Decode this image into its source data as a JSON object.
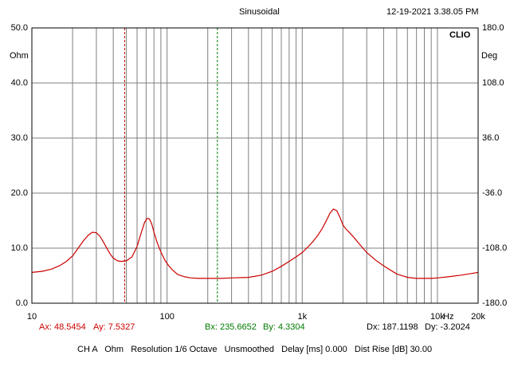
{
  "header": {
    "title": "Sinusoidal",
    "timestamp": "12-19-2021 3.38.05 PM",
    "brand": "CLIO"
  },
  "footer": {
    "ax": "Ax: 48.5454",
    "ay": "Ay: 7.5327",
    "bx": "Bx: 235.6652",
    "by": "By: 4.3304",
    "dx": "Dx: 187.1198",
    "dy": "Dy: -3.2024",
    "settings": "CH A   Ohm   Resolution 1/6 Octave   Unsmoothed   Delay [ms] 0.000   Dist Rise [dB] 30.00"
  },
  "colors": {
    "curve": "#cc0000",
    "cursor_a": "#cc0000",
    "cursor_b": "#008000",
    "grid": "#808080",
    "frame": "#000000"
  },
  "chart_data": {
    "type": "line",
    "xscale": "log",
    "xlim": [
      10,
      20000
    ],
    "ylim": [
      0,
      50
    ],
    "y2lim": [
      -180,
      180
    ],
    "ylabel": "Ohm",
    "y2label": "Deg",
    "xunit": "Hz",
    "x_tick_labels": [
      "10",
      "100",
      "1k",
      "10k",
      "20k"
    ],
    "y_tick_labels": [
      "0.0",
      "10.0",
      "20.0",
      "30.0",
      "40.0",
      "50.0"
    ],
    "y2_tick_labels": [
      "-180.0",
      "-108.0",
      "-36.0",
      "36.0",
      "108.0",
      "180.0"
    ],
    "grid": true,
    "cursors": [
      {
        "name": "A",
        "x": 48.5454,
        "y": 7.5327
      },
      {
        "name": "B",
        "x": 235.6652,
        "y": 4.3304
      }
    ],
    "series": [
      {
        "x": [
          10,
          12,
          14,
          16,
          18,
          20,
          22,
          24,
          26,
          28,
          30,
          32,
          34,
          36,
          38,
          40,
          43,
          46,
          50,
          55,
          60,
          64,
          68,
          71,
          74,
          77,
          80,
          84,
          88,
          92,
          97,
          103,
          110,
          120,
          135,
          150,
          170,
          200,
          250,
          300,
          400,
          500,
          600,
          700,
          800,
          900,
          1000,
          1100,
          1200,
          1300,
          1400,
          1500,
          1600,
          1700,
          1800,
          1900,
          2000,
          2100,
          2200,
          2400,
          2700,
          3000,
          3500,
          4000,
          5000,
          6000,
          7000,
          8000,
          9000,
          10000,
          12000,
          15000,
          18000,
          20000
        ],
        "values": [
          5.6,
          5.8,
          6.2,
          6.8,
          7.6,
          8.6,
          10.0,
          11.3,
          12.3,
          12.9,
          12.8,
          12.1,
          11.0,
          9.9,
          8.9,
          8.2,
          7.7,
          7.6,
          7.7,
          8.4,
          10.3,
          12.6,
          14.6,
          15.4,
          15.3,
          14.4,
          12.9,
          11.2,
          9.9,
          8.8,
          7.7,
          6.8,
          6.0,
          5.2,
          4.8,
          4.6,
          4.5,
          4.5,
          4.5,
          4.6,
          4.7,
          5.1,
          5.8,
          6.7,
          7.6,
          8.4,
          9.2,
          10.2,
          11.2,
          12.3,
          13.5,
          14.9,
          16.3,
          17.1,
          16.8,
          15.6,
          14.2,
          13.5,
          13.0,
          12.0,
          10.5,
          9.2,
          7.8,
          6.8,
          5.3,
          4.7,
          4.5,
          4.5,
          4.5,
          4.6,
          4.8,
          5.1,
          5.4,
          5.6
        ]
      }
    ]
  }
}
